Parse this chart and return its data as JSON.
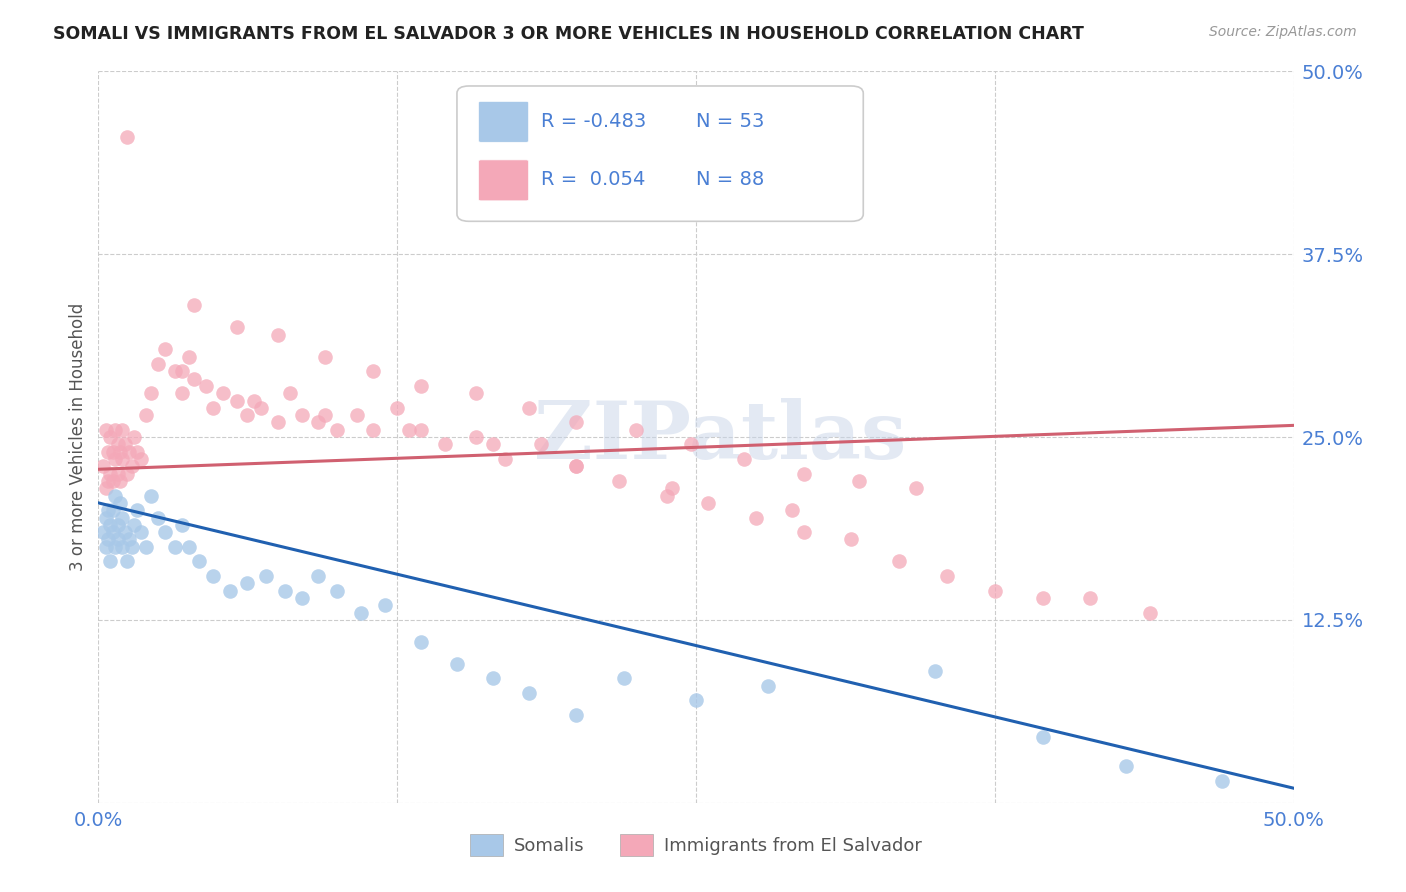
{
  "title": "SOMALI VS IMMIGRANTS FROM EL SALVADOR 3 OR MORE VEHICLES IN HOUSEHOLD CORRELATION CHART",
  "source": "Source: ZipAtlas.com",
  "ylabel": "3 or more Vehicles in Household",
  "xlim": [
    0.0,
    0.5
  ],
  "ylim": [
    0.0,
    0.5
  ],
  "xtick_pos": [
    0.0,
    0.125,
    0.25,
    0.375,
    0.5
  ],
  "ytick_pos": [
    0.0,
    0.125,
    0.25,
    0.375,
    0.5
  ],
  "xtick_labels": [
    "0.0%",
    "",
    "",
    "",
    "50.0%"
  ],
  "ytick_labels": [
    "",
    "12.5%",
    "25.0%",
    "37.5%",
    "50.0%"
  ],
  "somali_color": "#a8c8e8",
  "salvador_color": "#f4a8b8",
  "somali_line_color": "#2060b0",
  "salvador_line_color": "#d06070",
  "legend_somali_label": "Somalis",
  "legend_salvador_label": "Immigrants from El Salvador",
  "R_somali": -0.483,
  "N_somali": 53,
  "R_salvador": 0.054,
  "N_salvador": 88,
  "watermark": "ZIPatlas",
  "somali_line_x0": 0.0,
  "somali_line_y0": 0.205,
  "somali_line_x1": 0.5,
  "somali_line_y1": 0.01,
  "salvador_line_x0": 0.0,
  "salvador_line_y0": 0.228,
  "salvador_line_x1": 0.5,
  "salvador_line_y1": 0.258,
  "somali_x": [
    0.002,
    0.003,
    0.003,
    0.004,
    0.004,
    0.005,
    0.005,
    0.006,
    0.006,
    0.007,
    0.007,
    0.008,
    0.008,
    0.009,
    0.01,
    0.01,
    0.011,
    0.012,
    0.013,
    0.014,
    0.015,
    0.016,
    0.018,
    0.02,
    0.022,
    0.025,
    0.028,
    0.032,
    0.035,
    0.038,
    0.042,
    0.048,
    0.055,
    0.062,
    0.07,
    0.078,
    0.085,
    0.092,
    0.1,
    0.11,
    0.12,
    0.135,
    0.15,
    0.165,
    0.18,
    0.2,
    0.22,
    0.25,
    0.28,
    0.35,
    0.395,
    0.43,
    0.47
  ],
  "somali_y": [
    0.185,
    0.195,
    0.175,
    0.2,
    0.18,
    0.19,
    0.165,
    0.185,
    0.2,
    0.175,
    0.21,
    0.18,
    0.19,
    0.205,
    0.175,
    0.195,
    0.185,
    0.165,
    0.18,
    0.175,
    0.19,
    0.2,
    0.185,
    0.175,
    0.21,
    0.195,
    0.185,
    0.175,
    0.19,
    0.175,
    0.165,
    0.155,
    0.145,
    0.15,
    0.155,
    0.145,
    0.14,
    0.155,
    0.145,
    0.13,
    0.135,
    0.11,
    0.095,
    0.085,
    0.075,
    0.06,
    0.085,
    0.07,
    0.08,
    0.09,
    0.045,
    0.025,
    0.015
  ],
  "salvador_x": [
    0.002,
    0.003,
    0.003,
    0.004,
    0.004,
    0.005,
    0.005,
    0.006,
    0.006,
    0.007,
    0.007,
    0.008,
    0.008,
    0.009,
    0.009,
    0.01,
    0.01,
    0.011,
    0.012,
    0.013,
    0.014,
    0.015,
    0.016,
    0.018,
    0.02,
    0.022,
    0.025,
    0.028,
    0.032,
    0.035,
    0.038,
    0.04,
    0.045,
    0.048,
    0.052,
    0.058,
    0.062,
    0.068,
    0.075,
    0.08,
    0.085,
    0.092,
    0.1,
    0.108,
    0.115,
    0.125,
    0.135,
    0.145,
    0.158,
    0.17,
    0.185,
    0.2,
    0.218,
    0.238,
    0.255,
    0.275,
    0.295,
    0.315,
    0.335,
    0.355,
    0.375,
    0.395,
    0.04,
    0.058,
    0.075,
    0.095,
    0.115,
    0.135,
    0.158,
    0.18,
    0.2,
    0.225,
    0.248,
    0.27,
    0.295,
    0.318,
    0.342,
    0.012,
    0.035,
    0.065,
    0.095,
    0.13,
    0.165,
    0.2,
    0.24,
    0.29,
    0.415,
    0.44
  ],
  "salvador_y": [
    0.23,
    0.255,
    0.215,
    0.24,
    0.22,
    0.25,
    0.225,
    0.24,
    0.22,
    0.255,
    0.235,
    0.245,
    0.225,
    0.24,
    0.22,
    0.235,
    0.255,
    0.245,
    0.225,
    0.24,
    0.23,
    0.25,
    0.24,
    0.235,
    0.265,
    0.28,
    0.3,
    0.31,
    0.295,
    0.28,
    0.305,
    0.29,
    0.285,
    0.27,
    0.28,
    0.275,
    0.265,
    0.27,
    0.26,
    0.28,
    0.265,
    0.26,
    0.255,
    0.265,
    0.255,
    0.27,
    0.255,
    0.245,
    0.25,
    0.235,
    0.245,
    0.23,
    0.22,
    0.21,
    0.205,
    0.195,
    0.185,
    0.18,
    0.165,
    0.155,
    0.145,
    0.14,
    0.34,
    0.325,
    0.32,
    0.305,
    0.295,
    0.285,
    0.28,
    0.27,
    0.26,
    0.255,
    0.245,
    0.235,
    0.225,
    0.22,
    0.215,
    0.455,
    0.295,
    0.275,
    0.265,
    0.255,
    0.245,
    0.23,
    0.215,
    0.2,
    0.14,
    0.13
  ]
}
